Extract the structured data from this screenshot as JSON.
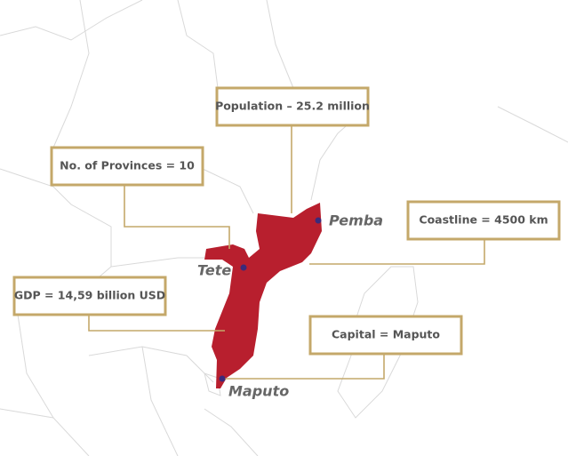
{
  "callouts": [
    {
      "label": "Population – 25.2 million"
    },
    {
      "label": "No. of Provinces = 10"
    },
    {
      "label": "Coastline = 4500 km"
    },
    {
      "label": "GDP = 14,59 billion USD"
    },
    {
      "label": "Capital = Maputo"
    }
  ],
  "cities": [
    {
      "name": "Pemba"
    },
    {
      "name": "Tete"
    },
    {
      "name": "Maputo"
    }
  ]
}
